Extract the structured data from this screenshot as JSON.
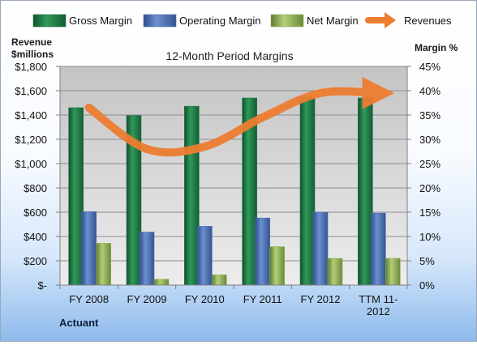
{
  "chart_data": {
    "type": "bar",
    "title": "12-Month Period Margins",
    "categories": [
      "FY 2008",
      "FY 2009",
      "FY 2010",
      "FY 2011",
      "FY 2012",
      "TTM 11-2012"
    ],
    "category_lines": [
      [
        "FY 2008"
      ],
      [
        "FY 2009"
      ],
      [
        "FY 2010"
      ],
      [
        "FY 2011"
      ],
      [
        "FY 2012"
      ],
      [
        "TTM 11-",
        "2012"
      ]
    ],
    "left_axis": {
      "label_lines": [
        "Revenue",
        "$millions"
      ],
      "range": [
        0,
        1800
      ],
      "ticks": [
        0,
        200,
        400,
        600,
        800,
        1000,
        1200,
        1400,
        1600,
        1800
      ],
      "tick_labels": [
        "$-",
        "$200",
        "$400",
        "$600",
        "$800",
        "$1,000",
        "$1,200",
        "$1,400",
        "$1,600",
        "$1,800"
      ]
    },
    "right_axis": {
      "label": "Margin %",
      "range": [
        0,
        45
      ],
      "ticks": [
        0,
        5,
        10,
        15,
        20,
        25,
        30,
        35,
        40,
        45
      ],
      "tick_labels": [
        "0%",
        "5%",
        "10%",
        "15%",
        "20%",
        "25%",
        "30%",
        "35%",
        "40%",
        "45%"
      ]
    },
    "series": [
      {
        "name": "Gross Margin",
        "kind": "bar",
        "axis": "right",
        "color": "#1f7a46",
        "values": [
          36.5,
          34.9,
          36.8,
          38.5,
          38.7,
          38.5
        ]
      },
      {
        "name": "Operating Margin",
        "kind": "bar",
        "axis": "right",
        "color": "#4a6fb3",
        "values": [
          15.1,
          10.9,
          12.1,
          13.8,
          15.0,
          14.8
        ]
      },
      {
        "name": "Net Margin",
        "kind": "bar",
        "axis": "right",
        "color": "#8fb054",
        "values": [
          8.6,
          1.2,
          2.1,
          7.9,
          5.5,
          5.5
        ]
      },
      {
        "name": "Revenues",
        "kind": "line",
        "axis": "left",
        "color": "#ed7d31",
        "values": [
          1460,
          1120,
          1140,
          1380,
          1580,
          1580
        ]
      }
    ],
    "legend_position": "top",
    "grid": true,
    "annotation": "Actuant"
  }
}
